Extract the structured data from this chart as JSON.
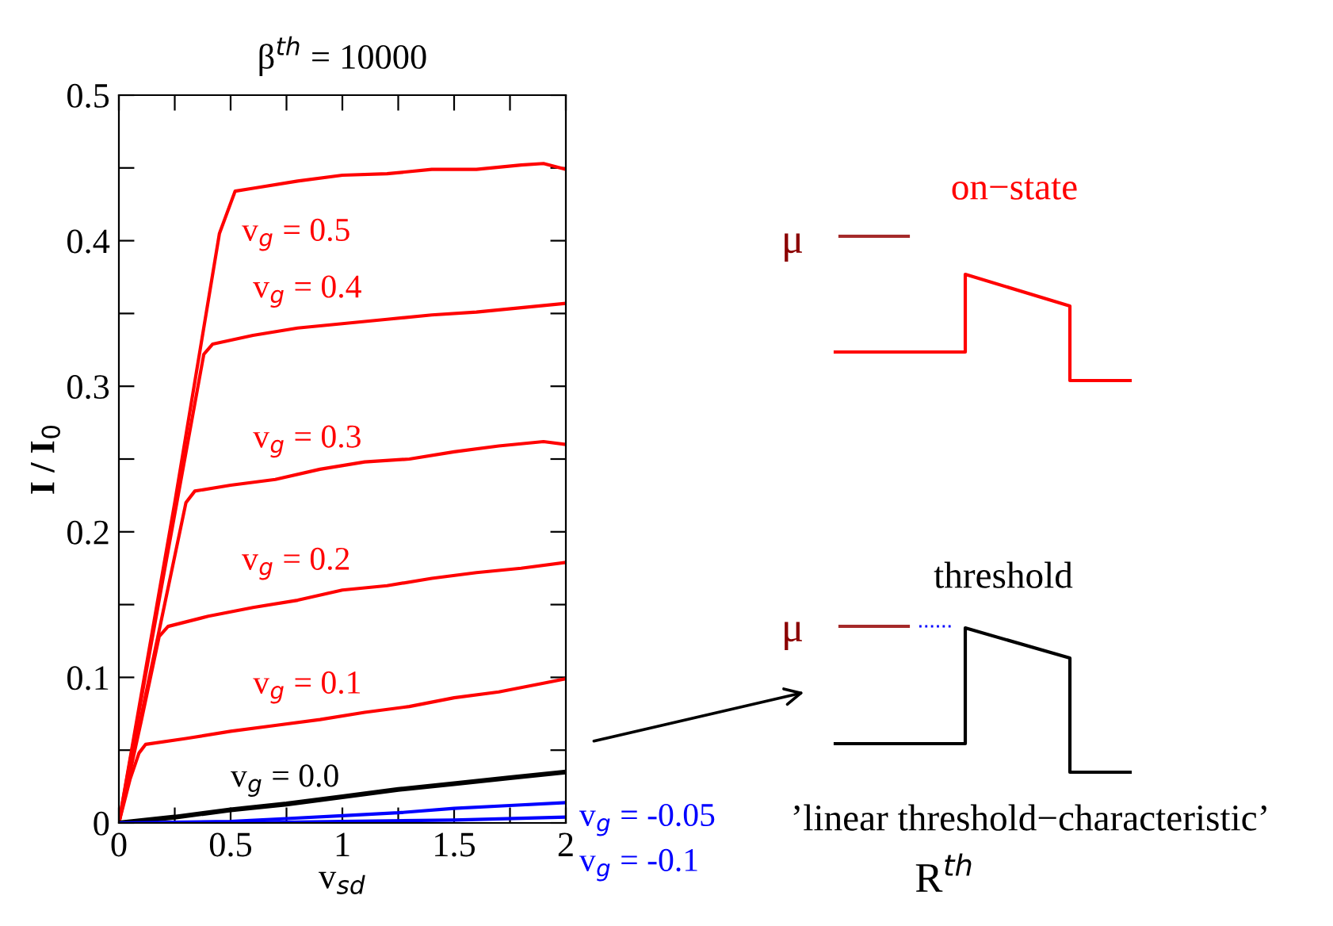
{
  "chart_data": {
    "type": "line",
    "title": "β$^{th}$ = 10000",
    "xlabel": "v$_{sd}$",
    "ylabel": "I / I$_{0}$",
    "xlim": [
      0,
      2
    ],
    "ylim": [
      0,
      0.5
    ],
    "xticks": [
      0,
      {
        "value": 0.25,
        "label": null
      },
      0.5,
      {
        "value": 0.75,
        "label": null
      },
      1,
      {
        "value": 1.25,
        "label": null
      },
      1.5,
      {
        "value": 1.75,
        "label": null
      },
      2
    ],
    "yticks": [
      0,
      {
        "value": 0.05,
        "label": null
      },
      0.1,
      {
        "value": 0.15,
        "label": null
      },
      0.2,
      {
        "value": 0.25,
        "label": null
      },
      0.3,
      {
        "value": 0.35,
        "label": null
      },
      0.4,
      {
        "value": 0.45,
        "label": null
      },
      0.5
    ],
    "grid": false,
    "legend": false,
    "marker": "none",
    "line_style": "solid",
    "series": [
      {
        "name": "v$_{g}$ = 0.5",
        "color": "#ff0000",
        "x": [
          0,
          0.25,
          0.45,
          0.52,
          0.6,
          0.8,
          1.0,
          1.2,
          1.4,
          1.6,
          1.8,
          1.9,
          2.0
        ],
        "values": [
          0,
          0.22,
          0.405,
          0.434,
          0.436,
          0.441,
          0.445,
          0.446,
          0.449,
          0.449,
          0.452,
          0.453,
          0.449
        ]
      },
      {
        "name": "v$_{g}$ = 0.4",
        "color": "#ff0000",
        "x": [
          0,
          0.2,
          0.38,
          0.42,
          0.6,
          0.8,
          1.0,
          1.2,
          1.4,
          1.6,
          1.8,
          2.0
        ],
        "values": [
          0,
          0.17,
          0.322,
          0.329,
          0.335,
          0.34,
          0.343,
          0.346,
          0.349,
          0.351,
          0.354,
          0.357
        ]
      },
      {
        "name": "v$_{g}$ = 0.3",
        "color": "#ff0000",
        "x": [
          0,
          0.15,
          0.3,
          0.34,
          0.5,
          0.7,
          0.9,
          1.1,
          1.3,
          1.5,
          1.7,
          1.9,
          2.0
        ],
        "values": [
          0,
          0.11,
          0.22,
          0.228,
          0.232,
          0.236,
          0.243,
          0.248,
          0.25,
          0.255,
          0.259,
          0.262,
          0.26
        ]
      },
      {
        "name": "v$_{g}$ = 0.2",
        "color": "#ff0000",
        "x": [
          0,
          0.1,
          0.18,
          0.22,
          0.4,
          0.6,
          0.8,
          1.0,
          1.2,
          1.4,
          1.6,
          1.8,
          2.0
        ],
        "values": [
          0,
          0.07,
          0.128,
          0.135,
          0.142,
          0.148,
          0.153,
          0.16,
          0.163,
          0.168,
          0.172,
          0.175,
          0.179
        ]
      },
      {
        "name": "v$_{g}$ = 0.1",
        "color": "#ff0000",
        "x": [
          0,
          0.05,
          0.09,
          0.12,
          0.3,
          0.5,
          0.7,
          0.9,
          1.1,
          1.3,
          1.5,
          1.7,
          1.9,
          2.0
        ],
        "values": [
          0,
          0.03,
          0.048,
          0.054,
          0.058,
          0.063,
          0.067,
          0.071,
          0.076,
          0.08,
          0.086,
          0.09,
          0.096,
          0.099
        ]
      },
      {
        "name": "v$_{g}$ = 0.0",
        "color": "#000000",
        "x": [
          0,
          0.25,
          0.5,
          0.75,
          1.0,
          1.25,
          1.5,
          1.75,
          2.0
        ],
        "values": [
          0,
          0.004,
          0.009,
          0.013,
          0.018,
          0.023,
          0.027,
          0.031,
          0.035
        ]
      },
      {
        "name": "v$_{g}$ = -0.05",
        "color": "#0000ff",
        "x": [
          0,
          0.5,
          0.75,
          1.0,
          1.25,
          1.5,
          1.75,
          2.0
        ],
        "values": [
          0,
          0.001,
          0.003,
          0.005,
          0.007,
          0.01,
          0.012,
          0.014
        ]
      },
      {
        "name": "v$_{g}$ = -0.1",
        "color": "#0000ff",
        "x": [
          0,
          0.5,
          1.0,
          1.5,
          2.0
        ],
        "values": [
          0,
          0,
          0.001,
          0.002,
          0.004
        ]
      }
    ],
    "annotations": [
      "on−state",
      "μ",
      "threshold",
      "μ",
      "’linear threshold−characteristic’",
      "R$^{th}$"
    ]
  }
}
